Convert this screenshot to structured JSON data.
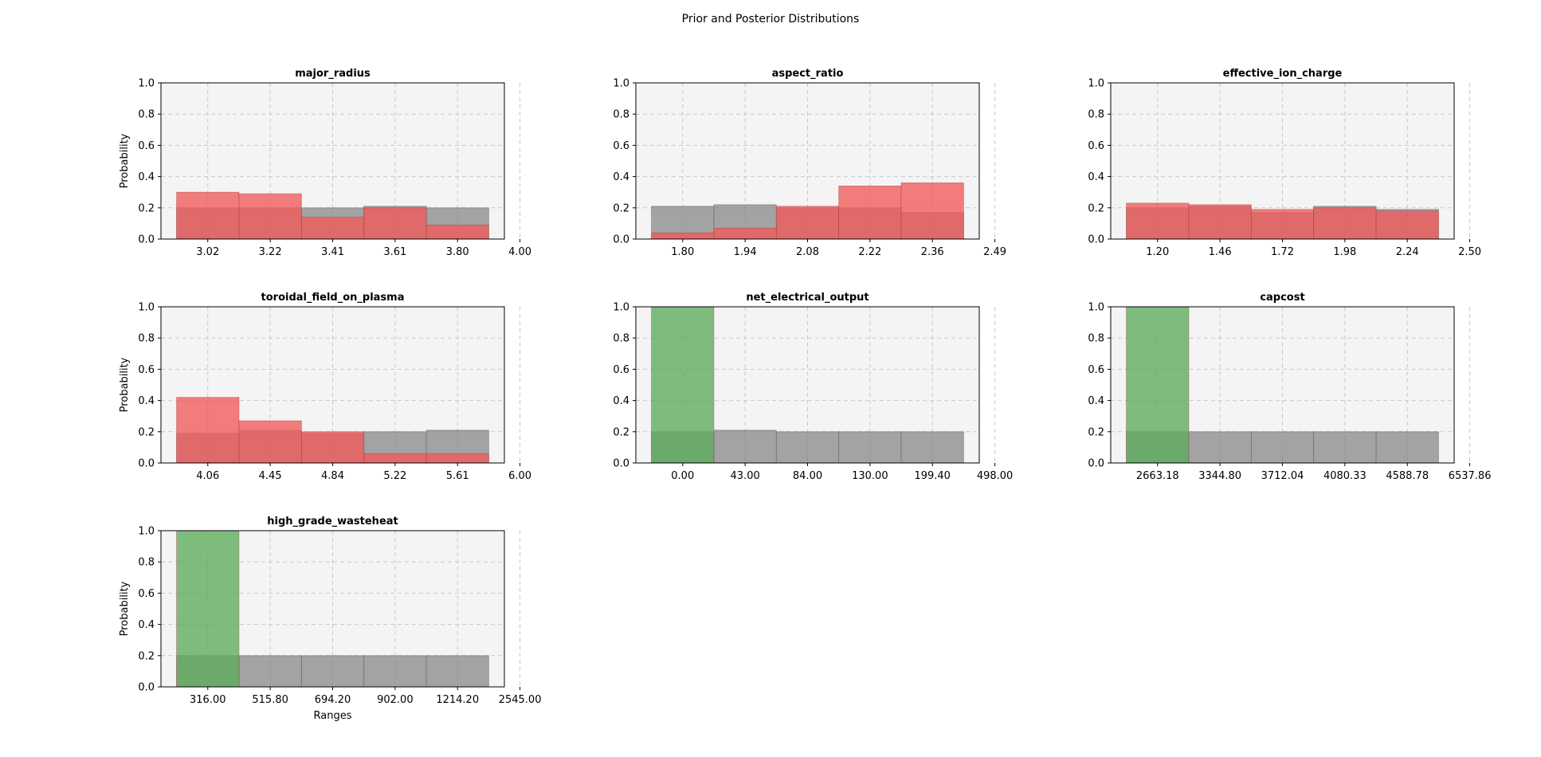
{
  "figure": {
    "title": "Prior and Posterior Distributions"
  },
  "colors": {
    "prior": "#808080",
    "posterior_red": "#f15a5a",
    "posterior_green": "#5cac5c",
    "axes_bg": "#f4f4f4",
    "grid": "#c8c8c8"
  },
  "chart_data": [
    {
      "type": "bar",
      "title": "major_radius",
      "xlabel": "",
      "ylabel": "Probability",
      "ylim": [
        0,
        1
      ],
      "yticks": [
        "0.0",
        "0.2",
        "0.4",
        "0.6",
        "0.8",
        "1.0"
      ],
      "xticks": [
        "3.02",
        "3.22",
        "3.41",
        "3.61",
        "3.80",
        "4.00"
      ],
      "grid": true,
      "series": [
        {
          "role": "prior",
          "color": "#808080",
          "values": [
            0.2,
            0.2,
            0.2,
            0.21,
            0.2
          ]
        },
        {
          "role": "posterior",
          "color": "#f15a5a",
          "values": [
            0.3,
            0.29,
            0.14,
            0.2,
            0.09
          ]
        }
      ]
    },
    {
      "type": "bar",
      "title": "aspect_ratio",
      "xlabel": "",
      "ylabel": "",
      "ylim": [
        0,
        1
      ],
      "yticks": [
        "0.0",
        "0.2",
        "0.4",
        "0.6",
        "0.8",
        "1.0"
      ],
      "xticks": [
        "1.80",
        "1.94",
        "2.08",
        "2.22",
        "2.36",
        "2.49"
      ],
      "grid": true,
      "series": [
        {
          "role": "prior",
          "color": "#808080",
          "values": [
            0.21,
            0.22,
            0.2,
            0.2,
            0.17
          ]
        },
        {
          "role": "posterior",
          "color": "#f15a5a",
          "values": [
            0.04,
            0.07,
            0.21,
            0.34,
            0.36
          ]
        }
      ]
    },
    {
      "type": "bar",
      "title": "effective_ion_charge",
      "xlabel": "",
      "ylabel": "",
      "ylim": [
        0,
        1
      ],
      "yticks": [
        "0.0",
        "0.2",
        "0.4",
        "0.6",
        "0.8",
        "1.0"
      ],
      "xticks": [
        "1.20",
        "1.46",
        "1.72",
        "1.98",
        "2.24",
        "2.50"
      ],
      "grid": true,
      "series": [
        {
          "role": "prior",
          "color": "#808080",
          "values": [
            0.2,
            0.21,
            0.17,
            0.21,
            0.19
          ]
        },
        {
          "role": "posterior",
          "color": "#f15a5a",
          "values": [
            0.23,
            0.22,
            0.19,
            0.2,
            0.18
          ]
        }
      ]
    },
    {
      "type": "bar",
      "title": "toroidal_field_on_plasma",
      "xlabel": "",
      "ylabel": "Probability",
      "ylim": [
        0,
        1
      ],
      "yticks": [
        "0.0",
        "0.2",
        "0.4",
        "0.6",
        "0.8",
        "1.0"
      ],
      "xticks": [
        "4.06",
        "4.45",
        "4.84",
        "5.22",
        "5.61",
        "6.00"
      ],
      "grid": true,
      "series": [
        {
          "role": "prior",
          "color": "#808080",
          "values": [
            0.19,
            0.21,
            0.19,
            0.2,
            0.21
          ]
        },
        {
          "role": "posterior",
          "color": "#f15a5a",
          "values": [
            0.42,
            0.27,
            0.2,
            0.06,
            0.06
          ]
        }
      ]
    },
    {
      "type": "bar",
      "title": "net_electrical_output",
      "xlabel": "",
      "ylabel": "",
      "ylim": [
        0,
        1
      ],
      "yticks": [
        "0.0",
        "0.2",
        "0.4",
        "0.6",
        "0.8",
        "1.0"
      ],
      "xticks": [
        "0.00",
        "43.00",
        "84.00",
        "130.00",
        "199.40",
        "498.00"
      ],
      "grid": true,
      "series": [
        {
          "role": "prior",
          "color": "#808080",
          "values": [
            0.2,
            0.21,
            0.2,
            0.2,
            0.2
          ]
        },
        {
          "role": "posterior",
          "color": "#5cac5c",
          "values": [
            1.0,
            0,
            0,
            0,
            0
          ]
        }
      ]
    },
    {
      "type": "bar",
      "title": "capcost",
      "xlabel": "",
      "ylabel": "",
      "ylim": [
        0,
        1
      ],
      "yticks": [
        "0.0",
        "0.2",
        "0.4",
        "0.6",
        "0.8",
        "1.0"
      ],
      "xticks": [
        "2663.18",
        "3344.80",
        "3712.04",
        "4080.33",
        "4588.78",
        "6537.86"
      ],
      "grid": true,
      "series": [
        {
          "role": "prior",
          "color": "#808080",
          "values": [
            0.2,
            0.2,
            0.2,
            0.2,
            0.2
          ]
        },
        {
          "role": "posterior",
          "color": "#5cac5c",
          "values": [
            1.0,
            0,
            0,
            0,
            0
          ]
        }
      ]
    },
    {
      "type": "bar",
      "title": "high_grade_wasteheat",
      "xlabel": "Ranges",
      "ylabel": "Probability",
      "ylim": [
        0,
        1
      ],
      "yticks": [
        "0.0",
        "0.2",
        "0.4",
        "0.6",
        "0.8",
        "1.0"
      ],
      "xticks": [
        "316.00",
        "515.80",
        "694.20",
        "902.00",
        "1214.20",
        "2545.00"
      ],
      "grid": true,
      "series": [
        {
          "role": "prior",
          "color": "#808080",
          "values": [
            0.2,
            0.2,
            0.2,
            0.2,
            0.2
          ]
        },
        {
          "role": "posterior",
          "color": "#5cac5c",
          "values": [
            1.0,
            0,
            0,
            0,
            0
          ]
        }
      ]
    }
  ]
}
